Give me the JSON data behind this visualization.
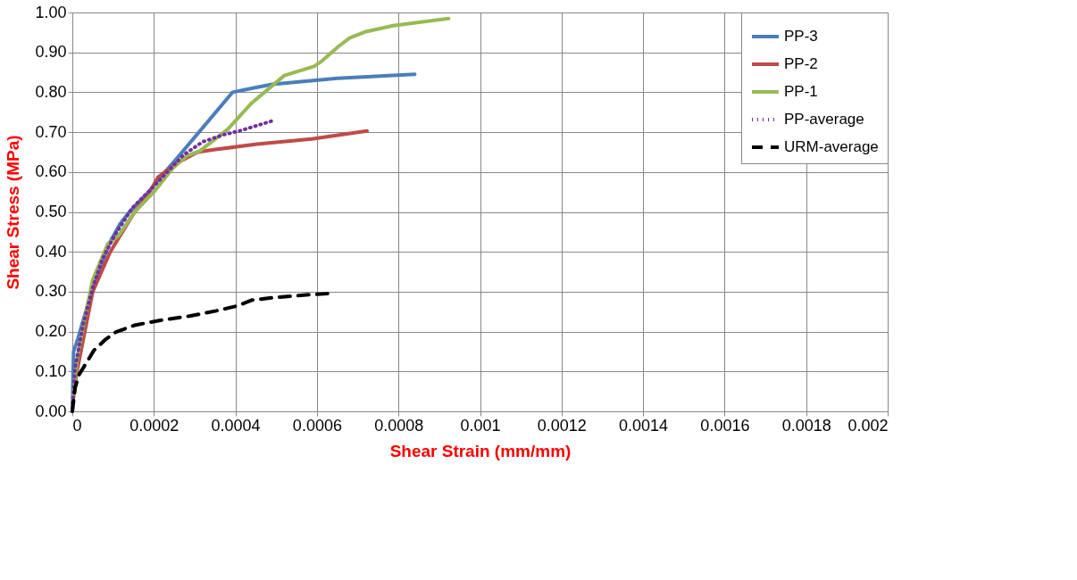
{
  "chart_data": {
    "type": "line",
    "xlabel": "Shear Strain (mm/mm)",
    "ylabel": "Shear  Stress (MPa)",
    "xlim": [
      0,
      0.002
    ],
    "xticks": [
      0,
      0.0002,
      0.0004,
      0.0006,
      0.0008,
      0.001,
      0.0012,
      0.0014,
      0.0016,
      0.0018,
      0.002
    ],
    "ylim": [
      0,
      1
    ],
    "yticks": [
      {
        "value": 0,
        "label": "0.00"
      },
      {
        "value": 0.1,
        "label": "0.10"
      },
      {
        "value": 0.2,
        "label": "0.20"
      },
      {
        "value": 0.3,
        "label": "0.30"
      },
      {
        "value": 0.4,
        "label": "0.40"
      },
      {
        "value": 0.5,
        "label": "0.50"
      },
      {
        "value": 0.6,
        "label": "0.60"
      },
      {
        "value": 0.7,
        "label": "0.70"
      },
      {
        "value": 0.8,
        "label": "0.80"
      },
      {
        "value": 0.9,
        "label": "0.90"
      },
      {
        "value": 1,
        "label": "1.00"
      }
    ],
    "grid": true,
    "legend": "top right",
    "marker": "none",
    "series": [
      {
        "name": "PP-3",
        "color": "#4a7ebb",
        "line_style": "solid",
        "x": [
          0,
          3e-06,
          1.3e-05,
          5e-05,
          9e-05,
          0.000117,
          0.00014,
          0.000187,
          0.00021,
          0.000253,
          0.000393,
          0.00044,
          0.00049,
          0.00065,
          0.00084
        ],
        "values": [
          0,
          0.15,
          0.18,
          0.31,
          0.42,
          0.47,
          0.5,
          0.55,
          0.58,
          0.63,
          0.8,
          0.81,
          0.82,
          0.835,
          0.845
        ]
      },
      {
        "name": "PP-2",
        "color": "#be4b48",
        "line_style": "solid",
        "x": [
          1e-06,
          1e-05,
          5e-05,
          9.3e-05,
          0.000153,
          0.000187,
          0.00021,
          0.000253,
          0.000307,
          0.000347,
          0.000453,
          0.000587,
          0.000723
        ],
        "values": [
          0.02,
          0.093,
          0.3,
          0.4,
          0.5,
          0.545,
          0.587,
          0.62,
          0.65,
          0.656,
          0.67,
          0.683,
          0.703
        ]
      },
      {
        "name": "PP-1",
        "color": "#98b954",
        "line_style": "solid",
        "x": [
          1e-06,
          1.3e-05,
          3e-05,
          5e-05,
          8.7e-05,
          0.000113,
          0.000153,
          0.0002,
          0.000247,
          0.00028,
          0.000313,
          0.00038,
          0.00044,
          0.00052,
          0.000593,
          0.000613,
          0.000653,
          0.00068,
          0.00072,
          0.000787,
          0.000923
        ],
        "values": [
          0.033,
          0.14,
          0.23,
          0.33,
          0.42,
          0.44,
          0.5,
          0.55,
          0.61,
          0.64,
          0.653,
          0.706,
          0.773,
          0.842,
          0.865,
          0.879,
          0.915,
          0.936,
          0.952,
          0.967,
          0.985
        ]
      },
      {
        "name": "PP-average",
        "color": "#7030a0",
        "line_style": "dotted",
        "x": [
          1e-06,
          7e-06,
          2.7e-05,
          5e-05,
          7.3e-05,
          0.000103,
          0.000147,
          0.000193,
          0.000233,
          0.000273,
          0.00032,
          0.000373,
          0.000413,
          0.00049
        ],
        "values": [
          0.02,
          0.11,
          0.22,
          0.31,
          0.38,
          0.44,
          0.51,
          0.557,
          0.6,
          0.643,
          0.676,
          0.694,
          0.704,
          0.728
        ]
      },
      {
        "name": "URM-average",
        "color": "#000000",
        "line_style": "dashed",
        "x": [
          0,
          7e-06,
          1.7e-05,
          3.7e-05,
          5.3e-05,
          8e-05,
          0.000107,
          0.000153,
          0.00022,
          0.000287,
          0.000353,
          0.000407,
          0.00044,
          0.000493,
          0.000573,
          0.000643
        ],
        "values": [
          0,
          0.06,
          0.093,
          0.126,
          0.153,
          0.179,
          0.199,
          0.216,
          0.229,
          0.239,
          0.252,
          0.265,
          0.279,
          0.285,
          0.292,
          0.296
        ]
      }
    ]
  }
}
